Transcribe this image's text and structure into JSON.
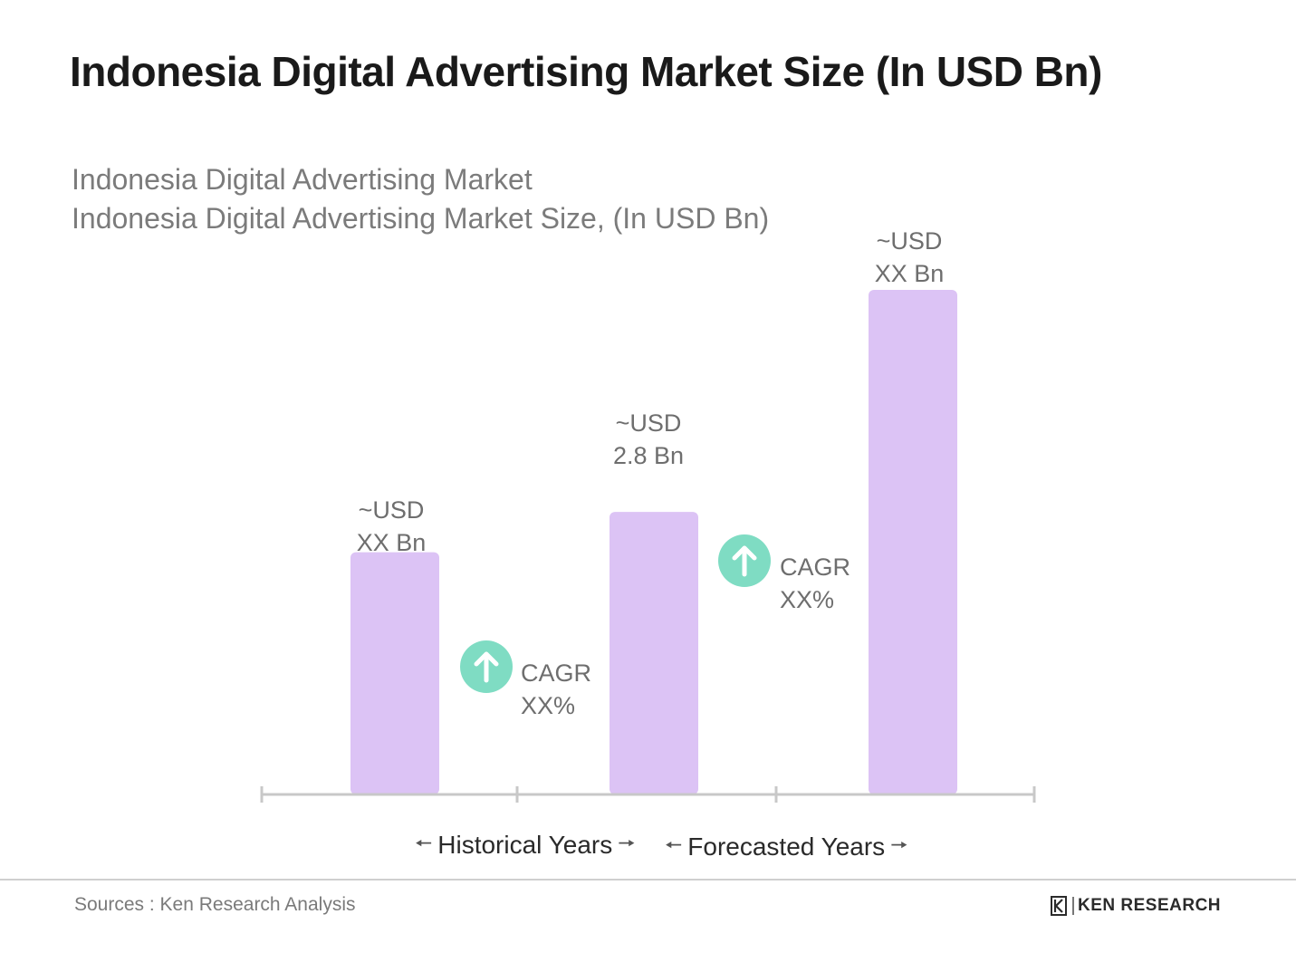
{
  "header": {
    "title": "Indonesia Digital Advertising Market Size (In USD Bn)",
    "subtitle_line1": "Indonesia Digital Advertising Market",
    "subtitle_line2": "Indonesia Digital Advertising Market Size, (In USD Bn)"
  },
  "colors": {
    "bar": "#dcc3f5",
    "cagr_icon": "#7fdcc3",
    "axis": "#c8c8c8"
  },
  "chart_data": {
    "type": "bar",
    "categories": [
      "",
      "",
      ""
    ],
    "values": [
      2.4,
      2.8,
      5.0
    ],
    "value_labels": [
      {
        "line1": "~USD",
        "line2": "XX Bn"
      },
      {
        "line1": "~USD",
        "line2": "2.8 Bn"
      },
      {
        "line1": "~USD",
        "line2": "XX Bn"
      }
    ],
    "cagr": [
      {
        "line1": "CAGR",
        "line2": "XX%"
      },
      {
        "line1": "CAGR",
        "line2": "XX%"
      }
    ],
    "periods": [
      "Historical Years",
      "Forecasted Years"
    ],
    "ylim": [
      0,
      5.0
    ],
    "grid": false
  },
  "footer": {
    "source": "Sources : Ken Research Analysis",
    "logo_text": "KEN RESEARCH"
  }
}
